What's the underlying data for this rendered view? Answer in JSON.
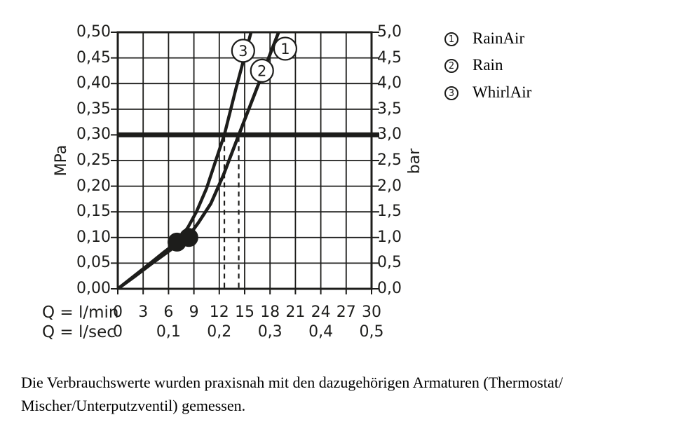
{
  "ink": "#1d1d1b",
  "legend": {
    "items": [
      {
        "num": "1",
        "label": "RainAir"
      },
      {
        "num": "2",
        "label": "Rain"
      },
      {
        "num": "3",
        "label": "WhirlAir"
      }
    ]
  },
  "caption": {
    "line1": "Die Verbrauchswerte wurden praxisnah mit den dazugehörigen Armaturen (Thermostat/",
    "line2": "Mischer/Unterputzventil) gemessen."
  },
  "chart_data": {
    "type": "line",
    "title": "",
    "x_axis": {
      "row1_label": "Q = l/min",
      "row2_label": "Q = l/sec",
      "range_lmin": [
        0,
        30
      ],
      "ticks_lmin": [
        "0",
        "3",
        "6",
        "9",
        "12",
        "15",
        "18",
        "21",
        "24",
        "27",
        "30"
      ],
      "ticks_lsec": [
        {
          "q": 0,
          "t": "0"
        },
        {
          "q": 6,
          "t": "0,1"
        },
        {
          "q": 12,
          "t": "0,2"
        },
        {
          "q": 18,
          "t": "0,3"
        },
        {
          "q": 24,
          "t": "0,4"
        },
        {
          "q": 30,
          "t": "0,5"
        }
      ]
    },
    "y_left": {
      "label": "MPa",
      "range_mpa": [
        0,
        0.5
      ],
      "ticks": [
        "0,50",
        "0,45",
        "0,40",
        "0,35",
        "0,30",
        "0,25",
        "0,20",
        "0,15",
        "0,10",
        "0,05",
        "0,00"
      ]
    },
    "y_right": {
      "label": "bar",
      "range_bar": [
        0,
        5
      ],
      "ticks": [
        "5,0",
        "4,5",
        "4,0",
        "3,5",
        "3,0",
        "2,5",
        "2,0",
        "1,5",
        "1,0",
        "0,5",
        "0,0"
      ]
    },
    "grid": {
      "x_step_lmin": 3,
      "y_step_mpa": 0.05,
      "grid_on": true
    },
    "reference_line_mpa": 0.3,
    "guide_lines_lmin": [
      12.6,
      14.3
    ],
    "series": [
      {
        "id": "1",
        "name": "RainAir",
        "flow_lmin_at_3bar": 14.3,
        "points": [
          [
            0,
            0
          ],
          [
            2,
            0.024
          ],
          [
            4,
            0.049
          ],
          [
            6,
            0.073
          ],
          [
            8.2,
            0.099
          ],
          [
            9.5,
            0.128
          ],
          [
            11,
            0.166
          ],
          [
            12.5,
            0.222
          ],
          [
            14.3,
            0.3
          ],
          [
            16,
            0.372
          ],
          [
            18,
            0.457
          ],
          [
            19.2,
            0.508
          ]
        ]
      },
      {
        "id": "2",
        "name": "Rain",
        "flow_lmin_at_3bar": 14.3,
        "points": [
          [
            0,
            0
          ],
          [
            2,
            0.024
          ],
          [
            4,
            0.049
          ],
          [
            6,
            0.073
          ],
          [
            8.2,
            0.099
          ],
          [
            9.5,
            0.128
          ],
          [
            11,
            0.166
          ],
          [
            12.5,
            0.222
          ],
          [
            14.3,
            0.3
          ],
          [
            16,
            0.372
          ],
          [
            18,
            0.457
          ],
          [
            19.2,
            0.508
          ]
        ]
      },
      {
        "id": "3",
        "name": "WhirlAir",
        "flow_lmin_at_3bar": 12.6,
        "points": [
          [
            0,
            0
          ],
          [
            2,
            0.026
          ],
          [
            4,
            0.052
          ],
          [
            5.5,
            0.072
          ],
          [
            7,
            0.091
          ],
          [
            8.3,
            0.12
          ],
          [
            9.3,
            0.15
          ],
          [
            10.5,
            0.196
          ],
          [
            11.5,
            0.246
          ],
          [
            12.6,
            0.3
          ],
          [
            14,
            0.392
          ],
          [
            15.8,
            0.503
          ]
        ]
      }
    ],
    "marker_dots": [
      {
        "q": 7.0,
        "p": 0.091
      },
      {
        "q": 8.4,
        "p": 0.1
      }
    ],
    "callouts": [
      {
        "n": "1",
        "q": 19.8,
        "p": 0.468
      },
      {
        "n": "2",
        "q": 17.05,
        "p": 0.425
      },
      {
        "n": "3",
        "q": 14.82,
        "p": 0.464
      }
    ]
  }
}
